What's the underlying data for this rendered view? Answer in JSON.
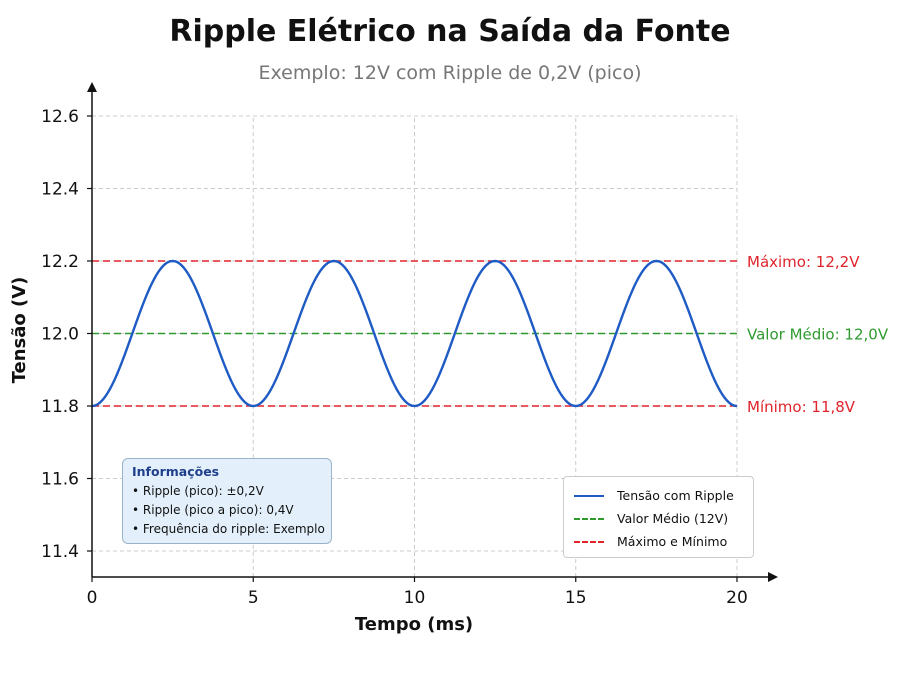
{
  "title": "Ripple Elétrico na Saída da Fonte",
  "subtitle": "Exemplo: 12V com Ripple de 0,2V (pico)",
  "colors": {
    "signal": "#1f5bc4",
    "average": "#2e9a2e",
    "limits": "#e0242c",
    "grid": "#cccccc",
    "axis": "#111111"
  },
  "chart_data": {
    "type": "line",
    "title": "Ripple Elétrico na Saída da Fonte",
    "subtitle": "Exemplo: 12V com Ripple de 0,2V (pico)",
    "xlabel": "Tempo (ms)",
    "ylabel": "Tensão (V)",
    "xlim": [
      0,
      20
    ],
    "ylim": [
      11.35,
      12.65
    ],
    "xticks": [
      0,
      5,
      10,
      15,
      20
    ],
    "yticks": [
      11.4,
      11.6,
      11.8,
      12.0,
      12.2,
      12.4,
      12.6
    ],
    "ytick_labels": [
      "11.4",
      "11.6",
      "11.8",
      "12.0",
      "12.2",
      "12.4",
      "12.6"
    ],
    "grid": true,
    "legend_position": "bottom-right",
    "series": [
      {
        "name": "Tensão com Ripple",
        "style": "solid",
        "color": "#1f5bc4",
        "x": [
          0,
          0.5,
          1,
          1.5,
          2,
          2.5,
          3,
          3.5,
          4,
          4.5,
          5,
          5.5,
          6,
          6.5,
          7,
          7.5,
          8,
          8.5,
          9,
          9.5,
          10,
          10.5,
          11,
          11.5,
          12,
          12.5,
          13,
          13.5,
          14,
          14.5,
          15,
          15.5,
          16,
          16.5,
          17,
          17.5,
          18,
          18.5,
          19,
          19.5,
          20
        ],
        "y": [
          11.8,
          11.838,
          11.938,
          12.062,
          12.162,
          12.2,
          12.162,
          12.062,
          11.938,
          11.838,
          11.8,
          11.838,
          11.938,
          12.062,
          12.162,
          12.2,
          12.162,
          12.062,
          11.938,
          11.838,
          11.8,
          11.838,
          11.938,
          12.062,
          12.162,
          12.2,
          12.162,
          12.062,
          11.938,
          11.838,
          11.8,
          11.838,
          11.938,
          12.062,
          12.162,
          12.2,
          12.162,
          12.062,
          11.938,
          11.838,
          11.8
        ]
      },
      {
        "name": "Valor Médio (12V)",
        "style": "dashed",
        "color": "#2e9a2e",
        "y_constant": 12.0
      },
      {
        "name": "Máximo e Mínimo",
        "style": "dashed",
        "color": "#e0242c",
        "y_constants": [
          12.2,
          11.8
        ]
      }
    ],
    "annotations": [
      {
        "text": "Máximo: 12,2V",
        "y": 12.2,
        "color": "#e0242c"
      },
      {
        "text": "Valor Médio: 12,0V",
        "y": 12.0,
        "color": "#2e9a2e"
      },
      {
        "text": "Mínimo: 11,8V",
        "y": 11.8,
        "color": "#e0242c"
      }
    ],
    "info_box": {
      "title": "Informações",
      "items": [
        "• Ripple (pico): ±0,2V",
        "• Ripple (pico a pico): 0,4V",
        "• Frequência do ripple: Exemplo"
      ]
    }
  }
}
